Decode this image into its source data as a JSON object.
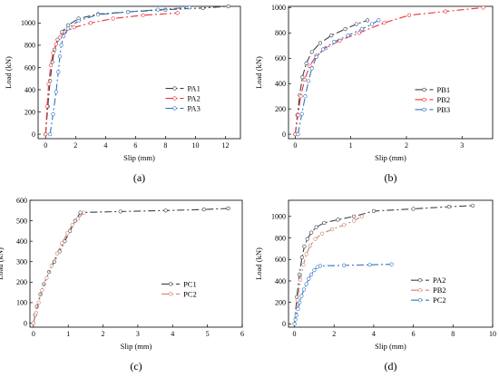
{
  "chart_data": [
    {
      "id": "a",
      "type": "line",
      "caption": "(a)",
      "xlabel": "Slip (mm)",
      "ylabel": "Load (kN)",
      "xlim": [
        -0.5,
        13
      ],
      "ylim": [
        -40,
        1150
      ],
      "xticks": [
        0,
        2,
        4,
        6,
        8,
        10,
        12
      ],
      "yticks": [
        0,
        200,
        400,
        600,
        800,
        1000
      ],
      "grid": false,
      "legend_position": "right-middle",
      "series": [
        {
          "name": "PA1",
          "color": "#39424e",
          "dash": "8,3,2,3",
          "marker": "circle",
          "x": [
            0,
            0.15,
            0.3,
            0.45,
            0.6,
            0.8,
            1.1,
            1.5,
            2.2,
            3.5,
            5.5,
            8.0,
            10.5,
            12.2
          ],
          "y": [
            0,
            250,
            480,
            650,
            760,
            850,
            920,
            980,
            1040,
            1080,
            1100,
            1120,
            1135,
            1150
          ]
        },
        {
          "name": "PA2",
          "color": "#e8333a",
          "dash": "8,3,2,3",
          "marker": "circle",
          "x": [
            0,
            0.1,
            0.2,
            0.35,
            0.5,
            0.7,
            0.95,
            1.3,
            1.9,
            3.0,
            4.5,
            6.5,
            8.8
          ],
          "y": [
            0,
            250,
            450,
            620,
            730,
            810,
            870,
            920,
            960,
            1000,
            1040,
            1070,
            1090
          ]
        },
        {
          "name": "PA3",
          "color": "#2f73c4",
          "dash": "8,3,2,3",
          "marker": "circle",
          "x": [
            0.3,
            0.5,
            0.7,
            0.85,
            0.95,
            1.05,
            1.2,
            1.5,
            2.2,
            3.5,
            5.5,
            7.5,
            9.6
          ],
          "y": [
            0,
            180,
            380,
            560,
            700,
            800,
            880,
            950,
            1020,
            1075,
            1100,
            1120,
            1140
          ]
        }
      ]
    },
    {
      "id": "b",
      "type": "line",
      "caption": "(b)",
      "xlabel": "Slip (mm)",
      "ylabel": "Load (kN)",
      "xlim": [
        -0.12,
        3.55
      ],
      "ylim": [
        -35,
        1010
      ],
      "xticks": [
        0,
        1,
        2,
        3
      ],
      "yticks": [
        0,
        200,
        400,
        600,
        800,
        1000
      ],
      "grid": false,
      "legend_position": "right-middle",
      "series": [
        {
          "name": "PB1",
          "color": "#39424e",
          "dash": "8,3,2,3",
          "marker": "circle",
          "x": [
            0,
            0.04,
            0.08,
            0.13,
            0.2,
            0.3,
            0.45,
            0.65,
            0.9,
            1.1,
            1.3
          ],
          "y": [
            0,
            150,
            310,
            450,
            560,
            650,
            720,
            780,
            830,
            870,
            900
          ]
        },
        {
          "name": "PB2",
          "color": "#e8333a",
          "dash": "8,3,2,3",
          "marker": "circle",
          "x": [
            0,
            0.05,
            0.1,
            0.17,
            0.26,
            0.38,
            0.55,
            0.8,
            1.15,
            1.6,
            2.05,
            2.7,
            3.38
          ],
          "y": [
            0,
            150,
            300,
            430,
            540,
            620,
            680,
            740,
            800,
            880,
            940,
            970,
            1000
          ]
        },
        {
          "name": "PB3",
          "color": "#2f73c4",
          "dash": "8,3,2,3",
          "marker": "circle",
          "x": [
            0.05,
            0.12,
            0.18,
            0.24,
            0.3,
            0.38,
            0.5,
            0.7,
            0.95,
            1.2,
            1.38,
            1.5
          ],
          "y": [
            0,
            160,
            300,
            420,
            520,
            610,
            670,
            730,
            780,
            830,
            870,
            900
          ]
        }
      ]
    },
    {
      "id": "c",
      "type": "line",
      "caption": "(c)",
      "xlabel": "Slip (mm)",
      "ylabel": "Load (kN)",
      "xlim": [
        -0.1,
        6
      ],
      "ylim": [
        -20,
        600
      ],
      "xticks": [
        0,
        1,
        2,
        3,
        4,
        5,
        6
      ],
      "yticks": [
        0,
        100,
        200,
        300,
        400,
        500,
        600
      ],
      "grid": false,
      "legend_position": "right-middle",
      "series": [
        {
          "name": "PC1",
          "color": "#39424e",
          "dash": "8,3,2,3",
          "marker": "circle",
          "x": [
            0,
            0.05,
            0.1,
            0.2,
            0.3,
            0.45,
            0.6,
            0.75,
            0.9,
            1.05,
            1.2,
            1.35,
            2.5,
            3.8,
            4.9,
            5.6
          ],
          "y": [
            0,
            40,
            80,
            140,
            190,
            250,
            300,
            350,
            400,
            450,
            500,
            540,
            545,
            550,
            555,
            560
          ]
        },
        {
          "name": "PC2",
          "color": "#cf8270",
          "dash": "8,3,2,3",
          "marker": "circle",
          "x": [
            0,
            0.08,
            0.15,
            0.25,
            0.38,
            0.52,
            0.68,
            0.82,
            0.98,
            1.12,
            1.28,
            1.45
          ],
          "y": [
            0,
            50,
            100,
            160,
            220,
            280,
            340,
            390,
            440,
            480,
            510,
            540
          ]
        }
      ]
    },
    {
      "id": "d",
      "type": "line",
      "caption": "(d)",
      "xlabel": "Slip (mm)",
      "ylabel": "Load (kN)",
      "xlim": [
        -0.3,
        10
      ],
      "ylim": [
        -30,
        1150
      ],
      "xticks": [
        0,
        2,
        4,
        6,
        8,
        10
      ],
      "yticks": [
        0,
        200,
        400,
        600,
        800,
        1000
      ],
      "grid": false,
      "legend_position": "right-middle",
      "series": [
        {
          "name": "PA2",
          "color": "#39424e",
          "dash": "8,3,2,3",
          "marker": "circle",
          "x": [
            0,
            0.12,
            0.25,
            0.38,
            0.5,
            0.65,
            0.85,
            1.1,
            1.5,
            2.2,
            3.0,
            4.0,
            6.0,
            7.8,
            9.0
          ],
          "y": [
            0,
            250,
            460,
            620,
            720,
            790,
            850,
            900,
            940,
            970,
            1000,
            1050,
            1070,
            1090,
            1100
          ]
        },
        {
          "name": "PB2",
          "color": "#cf8270",
          "dash": "8,3,2,3",
          "marker": "circle",
          "x": [
            0,
            0.15,
            0.3,
            0.45,
            0.6,
            0.8,
            1.05,
            1.4,
            1.9,
            2.5,
            3.0,
            3.4
          ],
          "y": [
            0,
            220,
            410,
            550,
            650,
            730,
            790,
            840,
            880,
            920,
            960,
            1000
          ]
        },
        {
          "name": "PC2",
          "color": "#2f73c4",
          "dash": "8,3,2,3",
          "marker": "circle",
          "x": [
            0,
            0.05,
            0.1,
            0.18,
            0.26,
            0.36,
            0.48,
            0.6,
            0.72,
            0.85,
            1.0,
            1.15,
            1.3,
            2.5,
            3.8,
            4.9
          ],
          "y": [
            0,
            40,
            80,
            140,
            200,
            260,
            320,
            370,
            420,
            460,
            500,
            530,
            540,
            545,
            550,
            555
          ]
        }
      ]
    }
  ]
}
